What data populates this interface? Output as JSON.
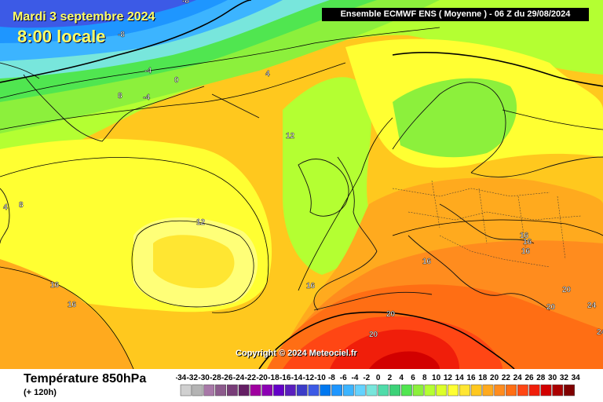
{
  "header": {
    "date": "Mardi 3 septembre 2024",
    "time": "8:00 locale",
    "model": "Ensemble ECMWF ENS  ( Moyenne )  -  06 Z du 29/08/2024"
  },
  "copyright": "Copyright © 2024 Meteociel.fr",
  "footer": {
    "variable": "Température 850hPa",
    "lead": "(+ 120h)"
  },
  "contour_labels": [
    {
      "text": "-8",
      "color": "#002"
    },
    {
      "text": "-8",
      "color": "#002"
    },
    {
      "text": "-4",
      "color": "#002"
    },
    {
      "text": "0",
      "color": "#002"
    },
    {
      "text": "-4",
      "color": "#002"
    },
    {
      "text": "4",
      "color": "#002"
    },
    {
      "text": "8",
      "color": "#002"
    },
    {
      "text": "4",
      "color": "#002"
    },
    {
      "text": "8",
      "color": "#002"
    },
    {
      "text": "12",
      "color": "#002"
    },
    {
      "text": "12",
      "color": "#002"
    },
    {
      "text": "16",
      "color": "#002"
    },
    {
      "text": "16",
      "color": "#002"
    },
    {
      "text": "16",
      "color": "#002"
    },
    {
      "text": "16",
      "color": "#002"
    },
    {
      "text": "16",
      "color": "#002"
    },
    {
      "text": "16",
      "color": "#002"
    },
    {
      "text": "16",
      "color": "#002"
    },
    {
      "text": "20",
      "color": "#002"
    },
    {
      "text": "20",
      "color": "#002"
    },
    {
      "text": "20",
      "color": "#002"
    },
    {
      "text": "24",
      "color": "#002"
    },
    {
      "text": "24",
      "color": "#002"
    },
    {
      "text": "20",
      "color": "#002"
    }
  ],
  "legend": {
    "values": [
      "-34",
      "-32",
      "-30",
      "-28",
      "-26",
      "-24",
      "-22",
      "-20",
      "-18",
      "-16",
      "-14",
      "-12",
      "-10",
      "-8",
      "-6",
      "-4",
      "-2",
      "0",
      "2",
      "4",
      "6",
      "8",
      "10",
      "12",
      "14",
      "16",
      "18",
      "20",
      "22",
      "24",
      "26",
      "28",
      "30",
      "32",
      "34"
    ],
    "colors": [
      "#d0d0d0",
      "#b4b4b4",
      "#a878a8",
      "#8c5a8c",
      "#783c78",
      "#641e64",
      "#a000a0",
      "#8c00b4",
      "#6400c8",
      "#5a1ebe",
      "#3c3cc8",
      "#3c5ae6",
      "#0078f0",
      "#1e96ff",
      "#3cb4ff",
      "#64d2ff",
      "#78e6dc",
      "#50dcaa",
      "#3cd278",
      "#50e650",
      "#8cf03c",
      "#b4ff32",
      "#dcff28",
      "#ffff32",
      "#ffe632",
      "#ffc81e",
      "#ffaa1e",
      "#ff8c1e",
      "#ff6e14",
      "#ff4614",
      "#f01e0a",
      "#d20000",
      "#aa0000",
      "#800000",
      "#5a0000"
    ]
  }
}
